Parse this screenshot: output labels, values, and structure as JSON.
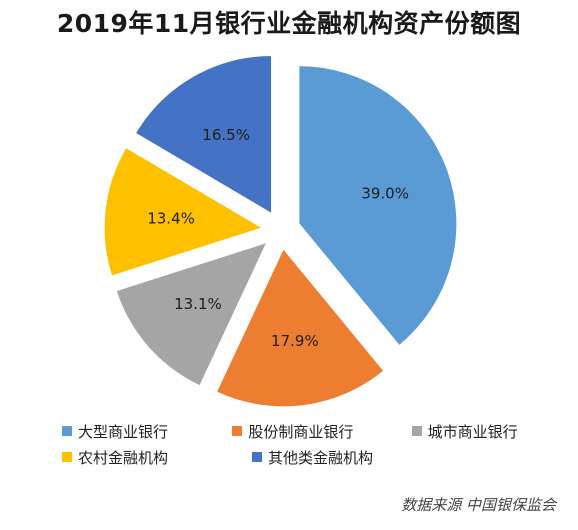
{
  "chart_data": {
    "type": "pie",
    "title": "2019年11月银行业金融机构资产份额图",
    "slices": [
      {
        "name": "大型商业银行",
        "value": 39.0,
        "label": "39.0%",
        "color": "#5b9bd5"
      },
      {
        "name": "股份制商业银行",
        "value": 17.9,
        "label": "17.9%",
        "color": "#ed7d31"
      },
      {
        "name": "城市商业银行",
        "value": 13.1,
        "label": "13.1%",
        "color": "#a5a5a5"
      },
      {
        "name": "农村金融机构",
        "value": 13.4,
        "label": "13.4%",
        "color": "#ffc000"
      },
      {
        "name": "其他类金融机构",
        "value": 16.5,
        "label": "16.5%",
        "color": "#4472c4"
      }
    ],
    "start_angle_deg": 0,
    "exploded": true,
    "legend_position": "bottom"
  },
  "source": "数据来源 中国银保监会"
}
